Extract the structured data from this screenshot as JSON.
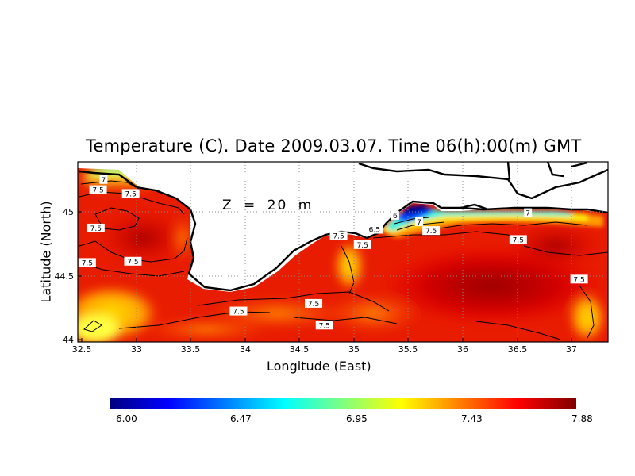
{
  "title": "Temperature (C). Date 2009.03.07. Time 06(h):00(m) GMT",
  "depth_label": "Z = 20 m",
  "axes": {
    "xlabel": "Longitude (East)",
    "ylabel": "Latitude (North)",
    "xticks": [
      "32.5",
      "33",
      "33.5",
      "34",
      "34.5",
      "35",
      "35.5",
      "36",
      "36.5",
      "37"
    ],
    "yticks": [
      "44",
      "44.5",
      "45"
    ],
    "xlim": [
      32.5,
      37.3
    ],
    "ylim": [
      44.0,
      45.35
    ]
  },
  "colorbar": {
    "ticks": [
      "6.00",
      "6.47",
      "6.95",
      "7.43",
      "7.88"
    ],
    "min": 6.0,
    "max": 7.88,
    "colors": [
      "#00007f",
      "#0000ff",
      "#007fff",
      "#00ffff",
      "#7fff7f",
      "#ffff00",
      "#ff7f00",
      "#ff0000",
      "#7f0000"
    ]
  },
  "contour_labels": [
    {
      "text": "7",
      "lon": 32.7,
      "lat": 45.25
    },
    {
      "text": "7.5",
      "lon": 32.65,
      "lat": 45.17
    },
    {
      "text": "7.5",
      "lon": 32.95,
      "lat": 45.14
    },
    {
      "text": "7.5",
      "lon": 32.63,
      "lat": 44.87
    },
    {
      "text": "7.5",
      "lon": 32.55,
      "lat": 44.6
    },
    {
      "text": "7.5",
      "lon": 32.97,
      "lat": 44.61
    },
    {
      "text": "7.5",
      "lon": 33.94,
      "lat": 44.22
    },
    {
      "text": "7.5",
      "lon": 34.63,
      "lat": 44.28
    },
    {
      "text": "7.5",
      "lon": 34.73,
      "lat": 44.11
    },
    {
      "text": "7.5",
      "lon": 35.08,
      "lat": 44.74
    },
    {
      "text": "7.5",
      "lon": 34.86,
      "lat": 44.81
    },
    {
      "text": "6",
      "lon": 35.38,
      "lat": 44.97
    },
    {
      "text": "7",
      "lon": 35.6,
      "lat": 44.92
    },
    {
      "text": "6.5",
      "lon": 35.19,
      "lat": 44.86
    },
    {
      "text": "7.5",
      "lon": 35.71,
      "lat": 44.85
    },
    {
      "text": "7.5",
      "lon": 36.51,
      "lat": 44.78
    },
    {
      "text": "7",
      "lon": 36.6,
      "lat": 44.99
    },
    {
      "text": "7.5",
      "lon": 37.07,
      "lat": 44.47
    }
  ]
}
